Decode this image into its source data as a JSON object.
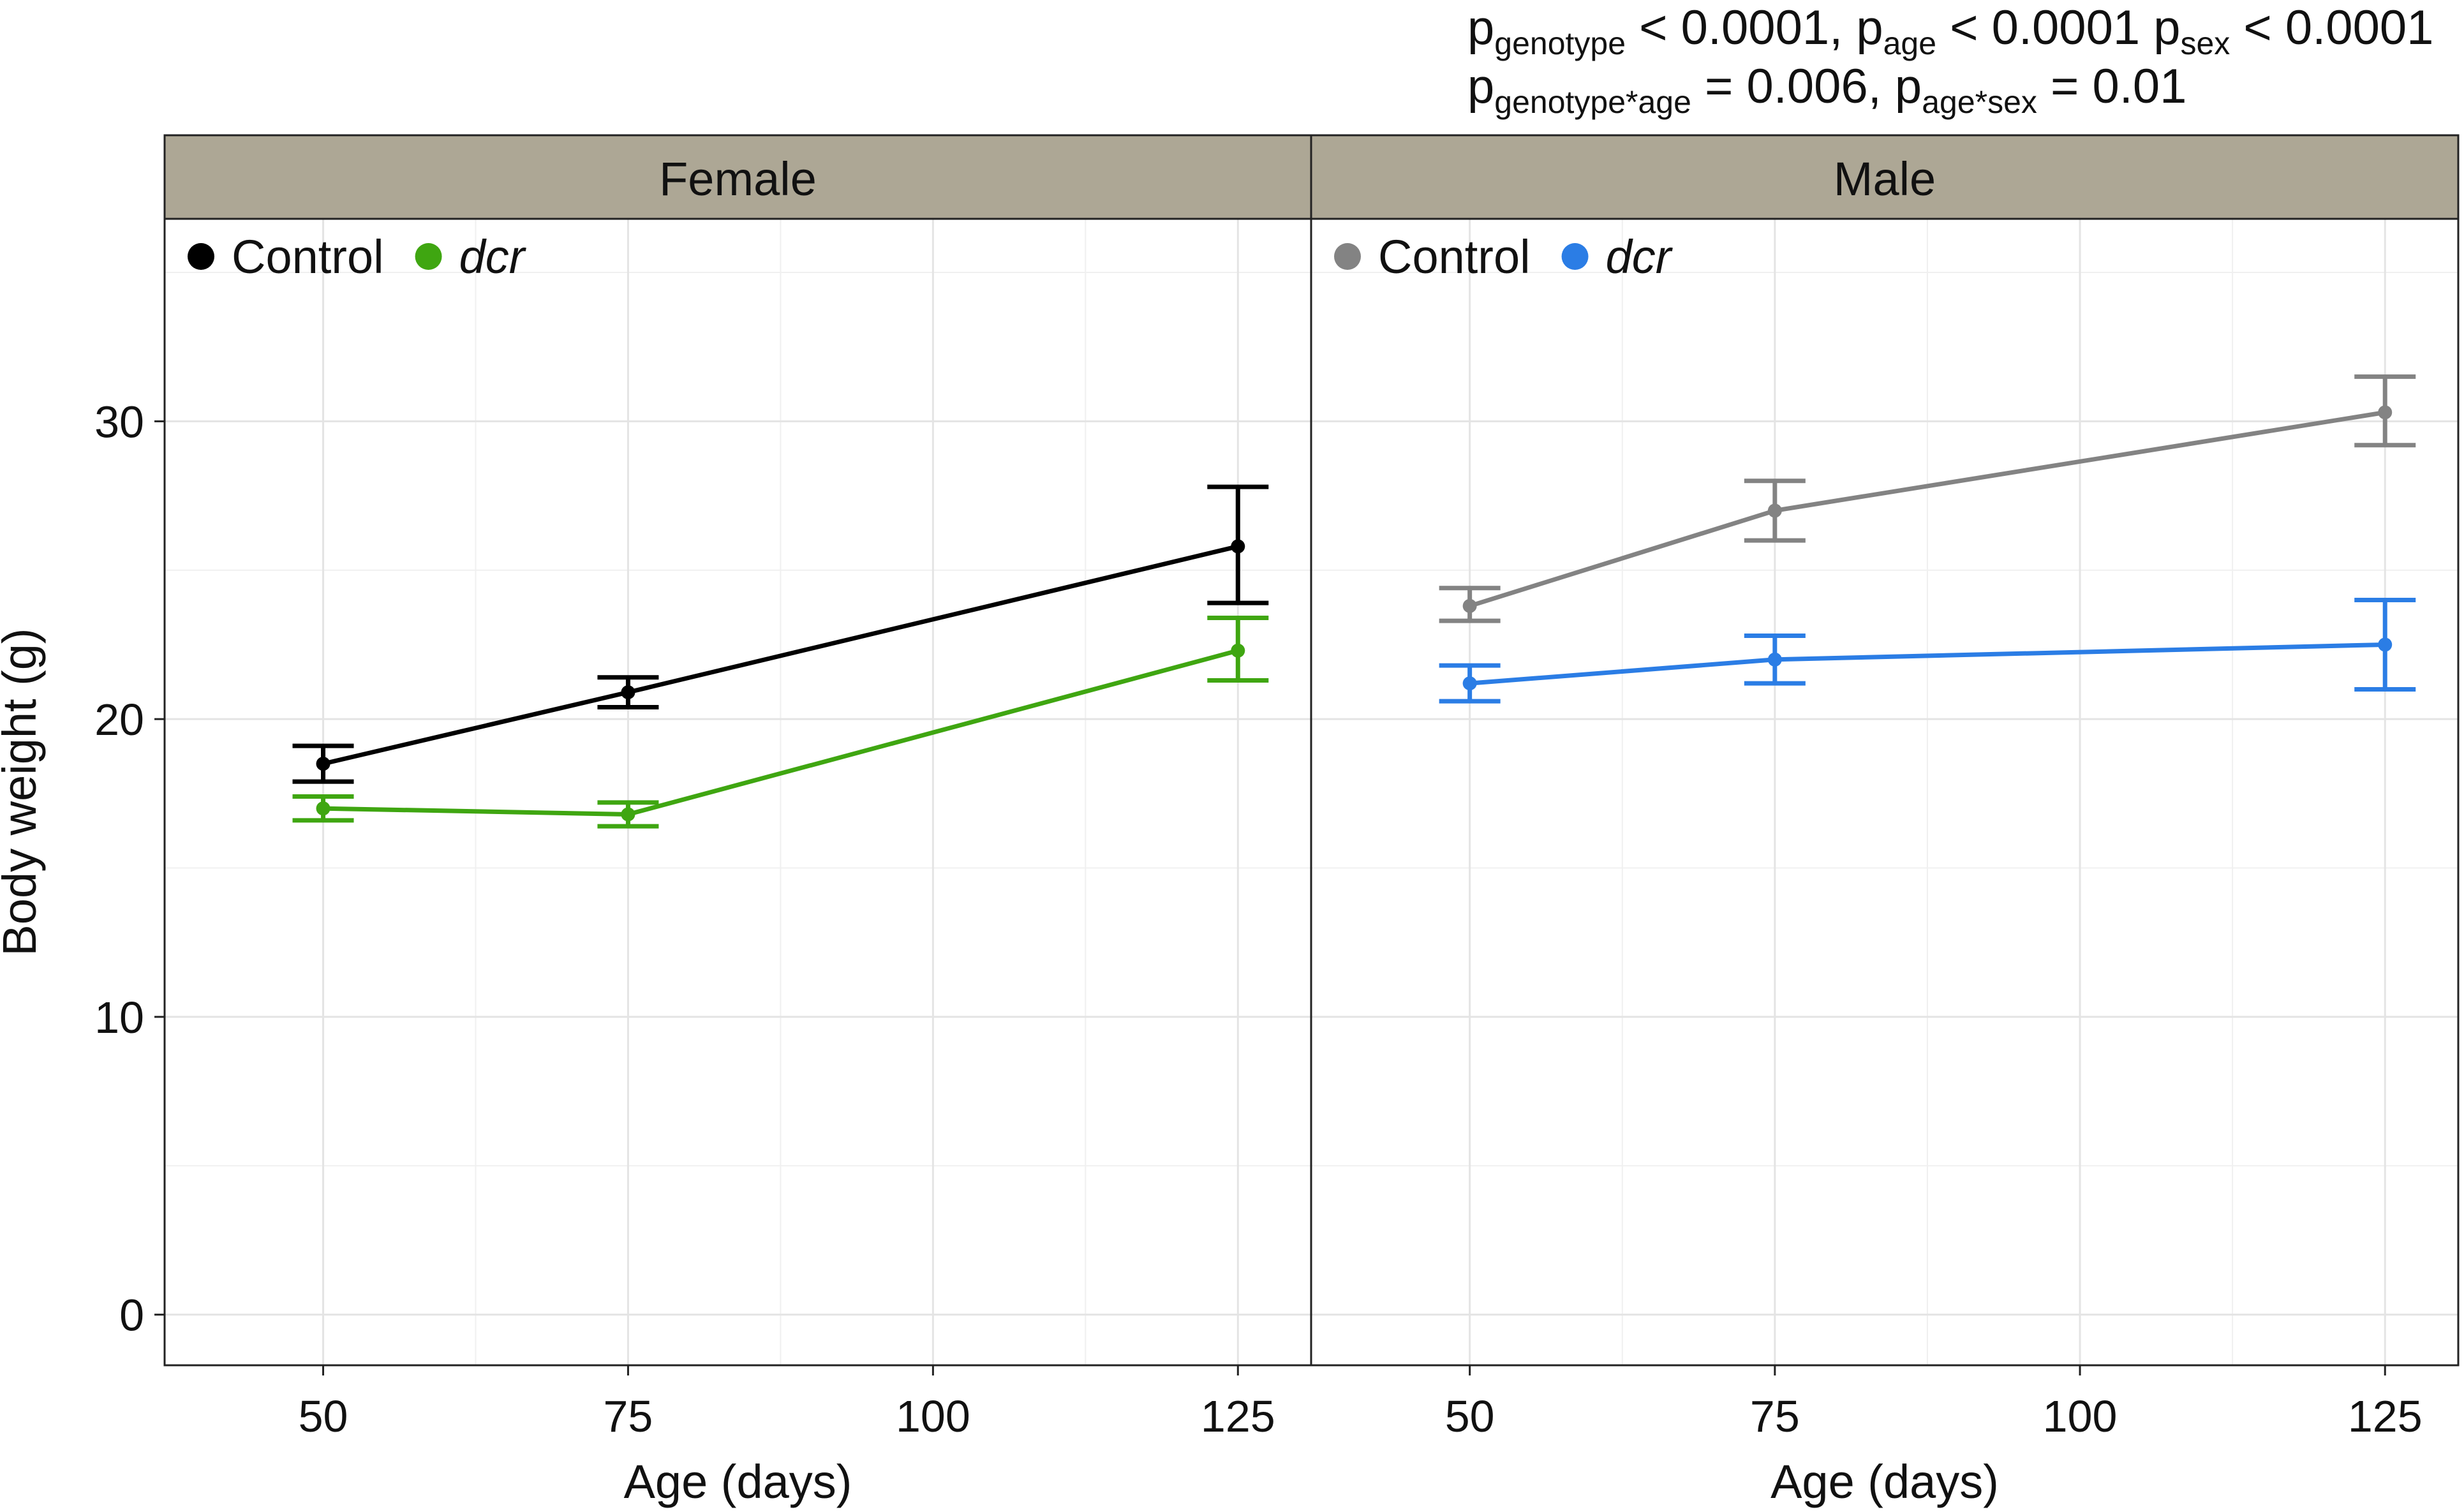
{
  "annotation": {
    "line1": [
      {
        "t": "p"
      },
      {
        "s": "genotype"
      },
      {
        "t": " < 0.0001, p"
      },
      {
        "s": "age"
      },
      {
        "t": " < 0.0001 p"
      },
      {
        "s": "sex"
      },
      {
        "t": " < 0.0001"
      }
    ],
    "line2": [
      {
        "t": "p"
      },
      {
        "s": "genotype*age"
      },
      {
        "t": " = 0.006, p"
      },
      {
        "s": "age*sex"
      },
      {
        "t": " = 0.01"
      }
    ]
  },
  "chart_data": {
    "type": "line",
    "ylabel": "Body weight (g)",
    "ylim": [
      -1.7,
      36.8
    ],
    "yticks": [
      0,
      10,
      20,
      30
    ],
    "xlim": [
      37,
      131
    ],
    "xticks": [
      50,
      75,
      100,
      125
    ],
    "strip_color": "#ada795",
    "panels": [
      {
        "title": "Female",
        "xlabel": "Age (days)",
        "series": [
          {
            "name": "Control",
            "color": "#000000",
            "italic": false,
            "x": [
              50,
              75,
              125
            ],
            "y": [
              18.5,
              20.9,
              25.8
            ],
            "lower": [
              17.9,
              20.4,
              23.9
            ],
            "upper": [
              19.1,
              21.4,
              27.8
            ]
          },
          {
            "name": "dcr",
            "color": "#3fa611",
            "italic": true,
            "x": [
              50,
              75,
              125
            ],
            "y": [
              17.0,
              16.8,
              22.3
            ],
            "lower": [
              16.6,
              16.4,
              21.3
            ],
            "upper": [
              17.4,
              17.2,
              23.4
            ]
          }
        ]
      },
      {
        "title": "Male",
        "xlabel": "Age (days)",
        "series": [
          {
            "name": "Control",
            "color": "#838383",
            "italic": false,
            "x": [
              50,
              75,
              125
            ],
            "y": [
              23.8,
              27.0,
              30.3
            ],
            "lower": [
              23.3,
              26.0,
              29.2
            ],
            "upper": [
              24.4,
              28.0,
              31.5
            ]
          },
          {
            "name": "dcr",
            "color": "#2b7de5",
            "italic": true,
            "x": [
              50,
              75,
              125
            ],
            "y": [
              21.2,
              22.0,
              22.5
            ],
            "lower": [
              20.6,
              21.2,
              21.0
            ],
            "upper": [
              21.8,
              22.8,
              24.0
            ]
          }
        ]
      }
    ]
  }
}
